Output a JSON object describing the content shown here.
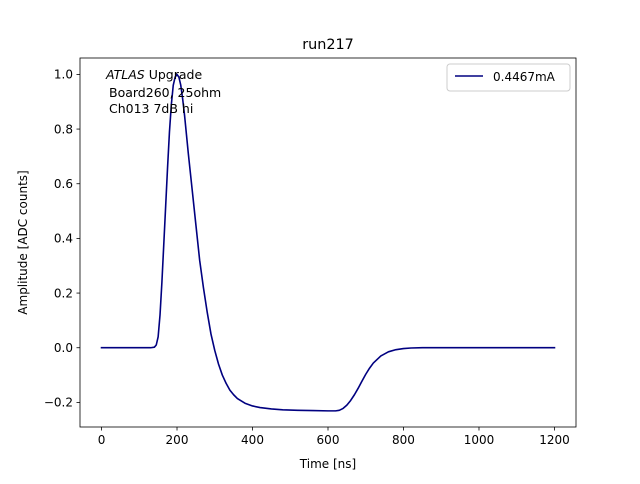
{
  "chart_data": {
    "type": "line",
    "title": "run217",
    "xlabel": "Time [ns]",
    "ylabel": "Amplitude [ADC counts]",
    "xlim": [
      -57,
      1257
    ],
    "ylim": [
      -0.29,
      1.06
    ],
    "xticks": [
      0,
      200,
      400,
      600,
      800,
      1000,
      1200
    ],
    "yticks": [
      -0.2,
      0.0,
      0.2,
      0.4,
      0.6,
      0.8,
      1.0
    ],
    "xtick_labels": [
      "0",
      "200",
      "400",
      "600",
      "800",
      "1000",
      "1200"
    ],
    "ytick_labels": [
      "−0.2",
      "0.0",
      "0.2",
      "0.4",
      "0.6",
      "0.8",
      "1.0"
    ],
    "grid": false,
    "legend_position": "upper right",
    "annotation": {
      "italic_part": "ATLAS",
      "line1_rest": " Upgrade",
      "line2": "Board260, 25ohm",
      "line3": "Ch013 7dB hi"
    },
    "series": [
      {
        "name": "0.4467mA",
        "color": "#000080",
        "x": [
          0,
          50,
          100,
          130,
          140,
          145,
          150,
          155,
          160,
          165,
          170,
          175,
          180,
          185,
          190,
          195,
          200,
          205,
          210,
          215,
          220,
          225,
          230,
          240,
          250,
          260,
          270,
          280,
          290,
          300,
          310,
          320,
          330,
          340,
          350,
          360,
          380,
          400,
          420,
          450,
          480,
          520,
          560,
          600,
          620,
          630,
          640,
          650,
          660,
          670,
          680,
          690,
          700,
          710,
          720,
          740,
          760,
          780,
          800,
          820,
          850,
          900,
          1000,
          1100,
          1200
        ],
        "y": [
          0,
          0,
          0,
          0,
          0.002,
          0.01,
          0.04,
          0.12,
          0.24,
          0.38,
          0.52,
          0.66,
          0.79,
          0.89,
          0.96,
          0.99,
          1.0,
          0.99,
          0.96,
          0.91,
          0.85,
          0.78,
          0.71,
          0.58,
          0.45,
          0.32,
          0.22,
          0.13,
          0.05,
          -0.01,
          -0.06,
          -0.1,
          -0.13,
          -0.155,
          -0.172,
          -0.186,
          -0.203,
          -0.213,
          -0.219,
          -0.224,
          -0.227,
          -0.229,
          -0.23,
          -0.231,
          -0.231,
          -0.229,
          -0.222,
          -0.21,
          -0.193,
          -0.172,
          -0.148,
          -0.122,
          -0.097,
          -0.075,
          -0.056,
          -0.03,
          -0.015,
          -0.007,
          -0.003,
          -0.001,
          0,
          0,
          0,
          0,
          0
        ]
      }
    ]
  }
}
